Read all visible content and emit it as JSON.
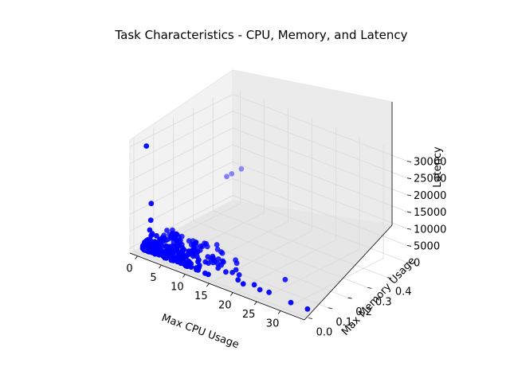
{
  "chart_data": {
    "type": "scatter",
    "title": "Task Characteristics - CPU, Memory, and Latency",
    "xlabel": "Max CPU Usage",
    "ylabel": "Max Memory Usage",
    "zlabel": "Latency",
    "xlim": [
      -1.6,
      35
    ],
    "ylim": [
      -0.02,
      0.5
    ],
    "zlim": [
      -1500,
      32000
    ],
    "x_ticks": [
      "0",
      "5",
      "10",
      "15",
      "20",
      "25",
      "30"
    ],
    "y_ticks": [
      "0.0",
      "0.1",
      "0.2",
      "0.3",
      "0.4"
    ],
    "z_ticks": [
      "0",
      "5000",
      "10000",
      "15000",
      "20000",
      "25000",
      "30000"
    ],
    "grid": true,
    "color": "#0000ff",
    "series": [
      {
        "points": [
          [
            0.2,
            0.02,
            30000
          ],
          [
            0.8,
            0.03,
            13000
          ],
          [
            0.7,
            0.03,
            8000
          ],
          [
            0.9,
            0.02,
            5500
          ],
          [
            1.0,
            0.03,
            4200
          ],
          [
            1.2,
            0.02,
            4000
          ],
          [
            1.5,
            0.04,
            3500
          ],
          [
            0.6,
            0.02,
            2500
          ],
          [
            0.3,
            0.01,
            1500
          ],
          [
            1.8,
            0.05,
            2200
          ],
          [
            2.5,
            0.06,
            2000
          ],
          [
            3.0,
            0.08,
            2400
          ],
          [
            3.5,
            0.09,
            2000
          ],
          [
            4.0,
            0.1,
            1700
          ],
          [
            5.0,
            0.12,
            1500
          ],
          [
            6.0,
            0.13,
            1300
          ],
          [
            7.0,
            0.15,
            1000
          ],
          [
            0.5,
            0.03,
            1000
          ],
          [
            2.0,
            0.04,
            1200
          ],
          [
            4.5,
            0.08,
            900
          ],
          [
            1.3,
            0.4,
            10200
          ],
          [
            1.5,
            0.42,
            10500
          ],
          [
            2.3,
            0.45,
            11500
          ],
          [
            12.0,
            0.1,
            500
          ],
          [
            14.0,
            0.05,
            400
          ],
          [
            15.0,
            0.12,
            300
          ],
          [
            16.5,
            0.08,
            350
          ],
          [
            18.0,
            0.06,
            250
          ],
          [
            19.0,
            0.03,
            200
          ],
          [
            20.5,
            0.02,
            150
          ],
          [
            22.0,
            0.04,
            100
          ],
          [
            24.0,
            0.02,
            300
          ],
          [
            25.5,
            0.03,
            50
          ],
          [
            30.5,
            0.02,
            0
          ],
          [
            34.0,
            0.02,
            0
          ],
          [
            26.0,
            0.1,
            2000
          ]
        ]
      }
    ]
  }
}
